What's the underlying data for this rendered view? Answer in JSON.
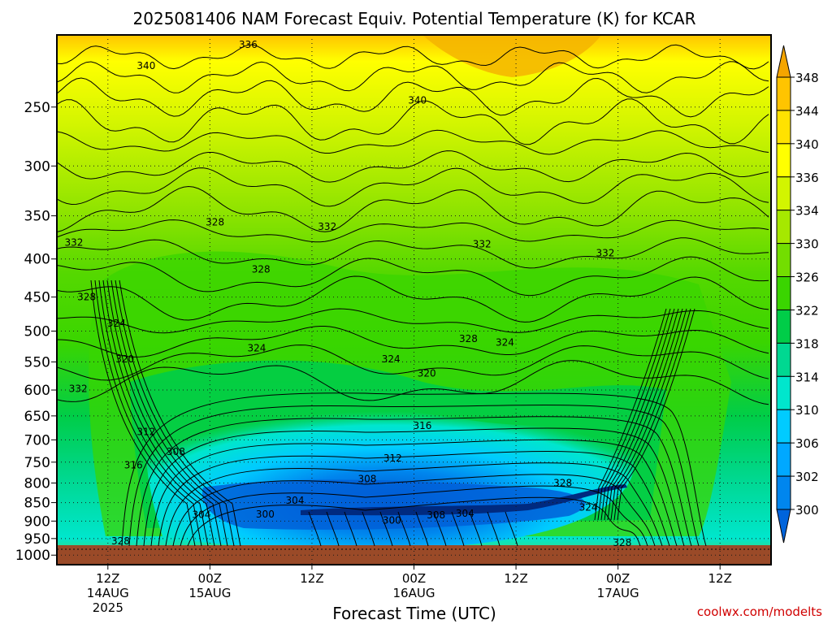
{
  "chart_data": {
    "type": "heatmap",
    "title": "2025081406 NAM Forecast Equiv. Potential Temperature (K) for KCAR",
    "xlabel": "Forecast Time (UTC)",
    "ylabel": "",
    "x_ticks": [
      {
        "label": "12Z",
        "sub": [
          "14AUG",
          "2025"
        ],
        "hour": 6
      },
      {
        "label": "00Z",
        "sub": [
          "15AUG"
        ],
        "hour": 18
      },
      {
        "label": "12Z",
        "sub": [],
        "hour": 30
      },
      {
        "label": "00Z",
        "sub": [
          "16AUG"
        ],
        "hour": 42
      },
      {
        "label": "12Z",
        "sub": [],
        "hour": 54
      },
      {
        "label": "00Z",
        "sub": [
          "17AUG"
        ],
        "hour": 66
      },
      {
        "label": "12Z",
        "sub": [],
        "hour": 78
      }
    ],
    "x_range_hours": [
      0,
      84
    ],
    "y_ticks": [
      250,
      300,
      350,
      400,
      450,
      500,
      550,
      600,
      650,
      700,
      750,
      800,
      850,
      900,
      950,
      1000
    ],
    "y_range_hPa": [
      200,
      1030
    ],
    "y_scale": "log",
    "grid": "dotted",
    "colorbar": {
      "labels": [
        "348",
        "344",
        "340",
        "336",
        "334",
        "330",
        "326",
        "322",
        "318",
        "314",
        "310",
        "306",
        "302",
        "300"
      ],
      "colors": [
        "#f5a500",
        "#ffc400",
        "#ffe200",
        "#ffff00",
        "#d2f500",
        "#a6e800",
        "#73de00",
        "#3ad500",
        "#00cd48",
        "#00d891",
        "#00e6cd",
        "#00cbff",
        "#00a8ff",
        "#0086ee",
        "#0064dc"
      ]
    },
    "contour_labels": [
      {
        "text": "336",
        "hour": 22.5,
        "p": 206
      },
      {
        "text": "340",
        "hour": 10.5,
        "p": 220
      },
      {
        "text": "340",
        "hour": 42.4,
        "p": 245
      },
      {
        "text": "328",
        "hour": 18.6,
        "p": 357
      },
      {
        "text": "332",
        "hour": 31.8,
        "p": 362
      },
      {
        "text": "332",
        "hour": 2.0,
        "p": 380
      },
      {
        "text": "332",
        "hour": 50.0,
        "p": 382
      },
      {
        "text": "332",
        "hour": 64.5,
        "p": 393
      },
      {
        "text": "328",
        "hour": 24.0,
        "p": 413
      },
      {
        "text": "328",
        "hour": 3.5,
        "p": 450
      },
      {
        "text": "324",
        "hour": 7.0,
        "p": 488
      },
      {
        "text": "324",
        "hour": 23.5,
        "p": 527
      },
      {
        "text": "324",
        "hour": 39.3,
        "p": 545
      },
      {
        "text": "328",
        "hour": 48.4,
        "p": 512
      },
      {
        "text": "324",
        "hour": 52.7,
        "p": 518
      },
      {
        "text": "320",
        "hour": 8.0,
        "p": 545
      },
      {
        "text": "320",
        "hour": 43.5,
        "p": 570
      },
      {
        "text": "332",
        "hour": 2.5,
        "p": 598
      },
      {
        "text": "316",
        "hour": 43.0,
        "p": 670
      },
      {
        "text": "312",
        "hour": 10.5,
        "p": 683
      },
      {
        "text": "308",
        "hour": 14.0,
        "p": 726
      },
      {
        "text": "312",
        "hour": 39.5,
        "p": 741
      },
      {
        "text": "316",
        "hour": 9.0,
        "p": 757
      },
      {
        "text": "308",
        "hour": 36.5,
        "p": 790
      },
      {
        "text": "328",
        "hour": 59.5,
        "p": 800
      },
      {
        "text": "304",
        "hour": 28.0,
        "p": 845
      },
      {
        "text": "324",
        "hour": 62.5,
        "p": 863
      },
      {
        "text": "304",
        "hour": 17.0,
        "p": 882
      },
      {
        "text": "300",
        "hour": 24.5,
        "p": 881
      },
      {
        "text": "308",
        "hour": 44.6,
        "p": 884
      },
      {
        "text": "304",
        "hour": 48.0,
        "p": 879
      },
      {
        "text": "300",
        "hour": 39.4,
        "p": 898
      },
      {
        "text": "328",
        "hour": 7.5,
        "p": 957
      },
      {
        "text": "328",
        "hour": 66.5,
        "p": 962
      }
    ]
  },
  "credit": "coolwx.com/modelts"
}
